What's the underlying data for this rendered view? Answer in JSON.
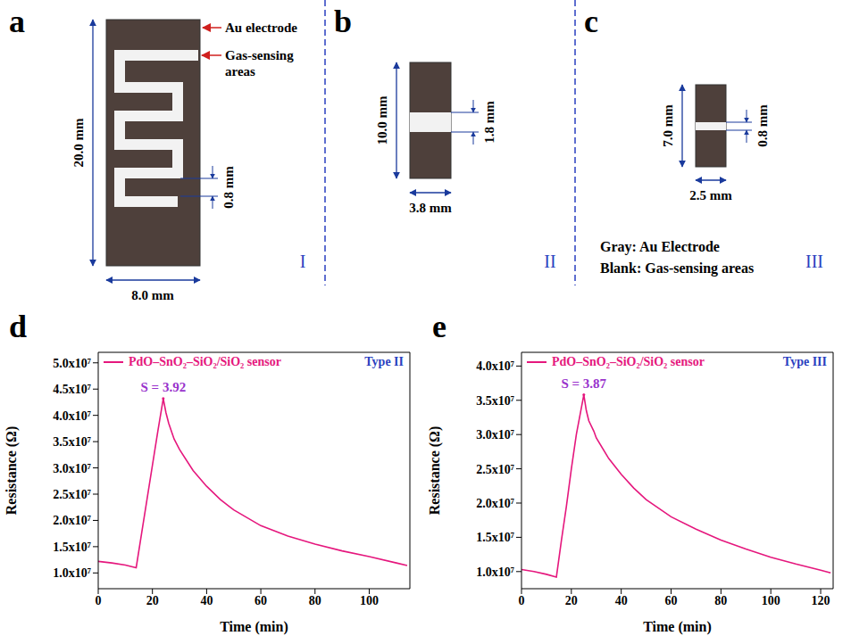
{
  "diagrams": [
    {
      "letter": "a",
      "label": "I",
      "height": "20.0 mm",
      "width": "8.0 mm",
      "gap": "0.8 mm",
      "annotations": [
        "Au electrode",
        "Gas-sensing areas"
      ]
    },
    {
      "letter": "b",
      "label": "II",
      "height": "10.0 mm",
      "width": "3.8 mm",
      "gap": "1.8 mm"
    },
    {
      "letter": "c",
      "label": "III",
      "height": "7.0 mm",
      "width": "2.5 mm",
      "gap": "0.8 mm",
      "notes": [
        "Gray: Au Electrode",
        "Blank: Gas-sensing areas"
      ]
    }
  ],
  "chart_data": [
    {
      "panel": "d",
      "type": "line",
      "tag": "Type II",
      "x_label": "Time (min)",
      "y_label": "Resistance (Ω)",
      "legend": "upper left",
      "x": [
        0,
        5,
        10,
        14,
        16,
        18,
        20,
        22,
        24,
        25,
        26,
        28,
        30,
        35,
        40,
        45,
        50,
        60,
        70,
        80,
        90,
        100,
        110,
        114
      ],
      "series": [
        {
          "name": "PdO–SnO₂–SiO₂/SiO₂ sensor",
          "color": "#e5177d",
          "values": [
            12200000,
            11900000,
            11500000,
            11000000,
            17500000,
            24000000,
            30500000,
            37000000,
            43200000,
            40500000,
            38500000,
            35500000,
            33500000,
            29500000,
            26500000,
            24000000,
            22000000,
            19000000,
            17000000,
            15500000,
            14200000,
            13100000,
            11900000,
            11400000
          ]
        }
      ],
      "xlim": [
        0,
        115
      ],
      "xticks": [
        0,
        20,
        40,
        60,
        80,
        100
      ],
      "ylim": [
        7000000,
        52000000
      ],
      "yticks": [
        {
          "value": 10000000,
          "label": "1.0x10⁷"
        },
        {
          "value": 15000000,
          "label": "1.5x10⁷"
        },
        {
          "value": 20000000,
          "label": "2.0x10⁷"
        },
        {
          "value": 25000000,
          "label": "2.5x10⁷"
        },
        {
          "value": 30000000,
          "label": "3.0x10⁷"
        },
        {
          "value": 35000000,
          "label": "3.5x10⁷"
        },
        {
          "value": 40000000,
          "label": "4.0x10⁷"
        },
        {
          "value": 45000000,
          "label": "4.5x10⁷"
        },
        {
          "value": 50000000,
          "label": "5.0x10⁷"
        }
      ],
      "annotations": [
        {
          "text": "S = 3.92",
          "x": 24,
          "y": 43200000
        }
      ]
    },
    {
      "panel": "e",
      "type": "line",
      "tag": "Type III",
      "x_label": "Time (min)",
      "y_label": "Resistance (Ω)",
      "legend": "upper left",
      "x": [
        0,
        5,
        10,
        14,
        16,
        18,
        20,
        22,
        25,
        26,
        27,
        29,
        30,
        35,
        40,
        45,
        50,
        60,
        70,
        80,
        90,
        100,
        110,
        120,
        124
      ],
      "series": [
        {
          "name": "PdO–SnO₂–SiO₂/SiO₂ sensor",
          "color": "#e5177d",
          "values": [
            10300000,
            10000000,
            9600000,
            9200000,
            14500000,
            19500000,
            25000000,
            30000000,
            35800000,
            33500000,
            32000000,
            30500000,
            29500000,
            26500000,
            24200000,
            22200000,
            20500000,
            18000000,
            16200000,
            14600000,
            13300000,
            12100000,
            11100000,
            10200000,
            9800000
          ]
        }
      ],
      "xlim": [
        0,
        125
      ],
      "xticks": [
        0,
        20,
        40,
        60,
        80,
        100,
        120
      ],
      "ylim": [
        7500000,
        42000000
      ],
      "yticks": [
        {
          "value": 10000000,
          "label": "1.0x10⁷"
        },
        {
          "value": 15000000,
          "label": "1.5x10⁷"
        },
        {
          "value": 20000000,
          "label": "2.0x10⁷"
        },
        {
          "value": 25000000,
          "label": "2.5x10⁷"
        },
        {
          "value": 30000000,
          "label": "3.0x10⁷"
        },
        {
          "value": 35000000,
          "label": "3.5x10⁷"
        },
        {
          "value": 40000000,
          "label": "4.0x10⁷"
        }
      ],
      "annotations": [
        {
          "text": "S = 3.87",
          "x": 25,
          "y": 35800000
        }
      ]
    }
  ]
}
